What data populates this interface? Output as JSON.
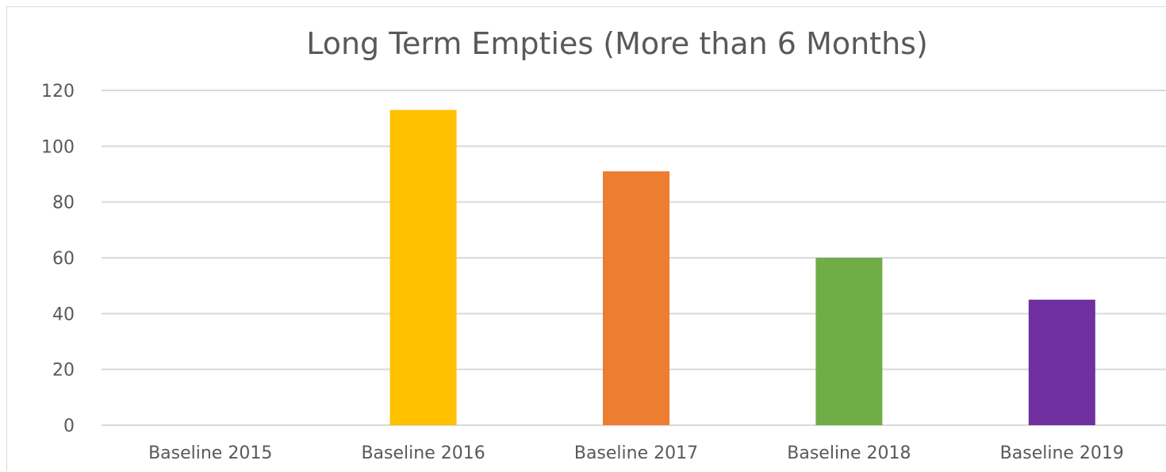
{
  "chart_data": {
    "type": "bar",
    "title": "Long Term Empties (More than 6 Months)",
    "xlabel": "",
    "ylabel": "",
    "categories": [
      "Baseline 2015",
      "Baseline 2016",
      "Baseline 2017",
      "Baseline 2018",
      "Baseline 2019"
    ],
    "values": [
      0,
      113,
      91,
      60,
      45
    ],
    "colors": [
      "#5B9BD5",
      "#FFC000",
      "#ED7D31",
      "#70AD47",
      "#7030A0"
    ],
    "ylim": [
      0,
      120
    ],
    "yticks": [
      "0",
      "20",
      "40",
      "60",
      "80",
      "100",
      "120"
    ],
    "grid": true,
    "legend": "none"
  }
}
